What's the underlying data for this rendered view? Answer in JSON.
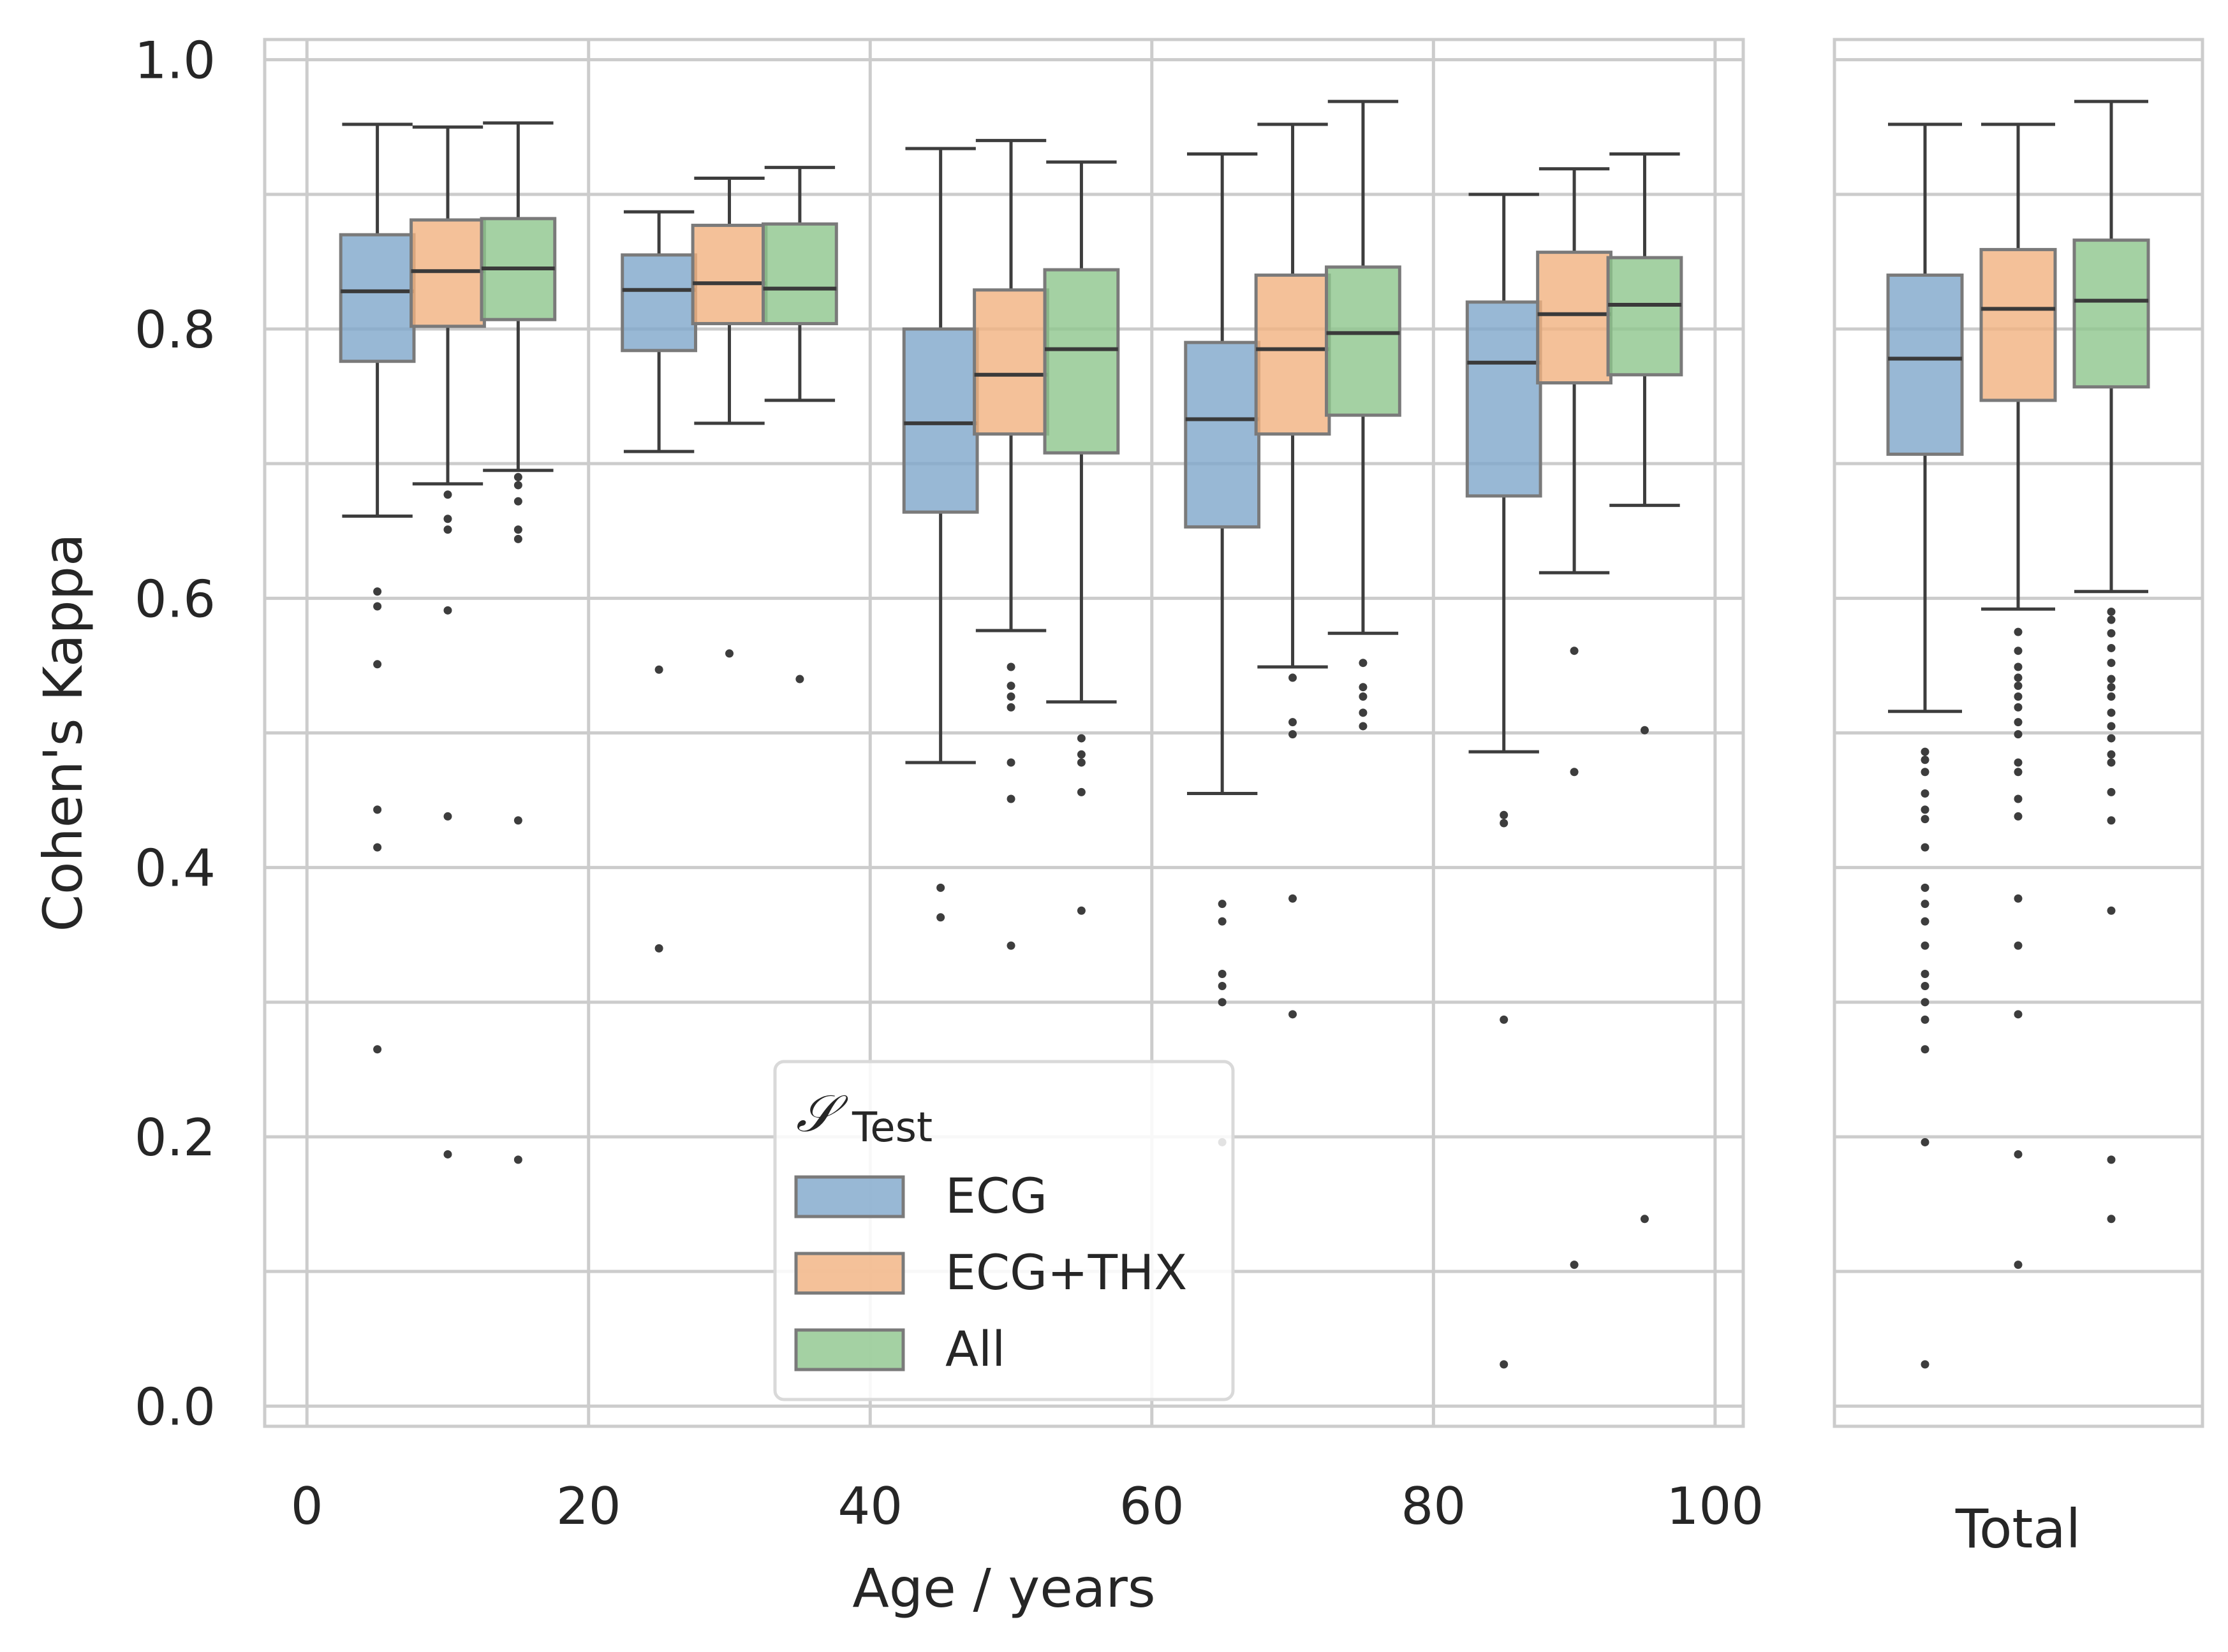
{
  "chart_data": [
    {
      "type": "box",
      "panel": "by-age",
      "xlabel": "Age / years",
      "ylabel": "Cohen's Kappa",
      "xlim": [
        -3,
        102
      ],
      "ylim": [
        -0.015,
        1.015
      ],
      "xticks": [
        "0",
        "20",
        "40",
        "60",
        "80",
        "100"
      ],
      "yticks": [
        "0.0",
        "0.2",
        "0.4",
        "0.6",
        "0.8",
        "1.0"
      ],
      "grid": true,
      "legend": {
        "title_symbol": "𝒮",
        "title_sub": "Test",
        "position": "lower-center",
        "entries": [
          "ECG",
          "ECG+THX",
          "All"
        ]
      },
      "series": [
        {
          "name": "ECG",
          "color": "#7ea6cb",
          "boxes": [
            {
              "x": 5,
              "whislo": 0.661,
              "q1": 0.776,
              "med": 0.828,
              "q3": 0.87,
              "whishi": 0.952,
              "fliers": [
                0.605,
                0.594,
                0.551,
                0.443,
                0.415,
                0.265
              ]
            },
            {
              "x": 25,
              "whislo": 0.709,
              "q1": 0.784,
              "med": 0.829,
              "q3": 0.855,
              "whishi": 0.887,
              "fliers": [
                0.547,
                0.34
              ]
            },
            {
              "x": 45,
              "whislo": 0.478,
              "q1": 0.664,
              "med": 0.73,
              "q3": 0.8,
              "whishi": 0.934,
              "fliers": [
                0.385,
                0.363
              ]
            },
            {
              "x": 65,
              "whislo": 0.455,
              "q1": 0.653,
              "med": 0.733,
              "q3": 0.79,
              "whishi": 0.93,
              "fliers": [
                0.373,
                0.36,
                0.321,
                0.312,
                0.3,
                0.196
              ]
            },
            {
              "x": 85,
              "whislo": 0.486,
              "q1": 0.676,
              "med": 0.775,
              "q3": 0.82,
              "whishi": 0.9,
              "fliers": [
                0.439,
                0.433,
                0.287,
                0.031
              ]
            }
          ]
        },
        {
          "name": "ECG+THX",
          "color": "#f1b17f",
          "boxes": [
            {
              "x": 10,
              "whislo": 0.685,
              "q1": 0.802,
              "med": 0.843,
              "q3": 0.881,
              "whishi": 0.95,
              "fliers": [
                0.677,
                0.659,
                0.651,
                0.591,
                0.438,
                0.187
              ]
            },
            {
              "x": 30,
              "whislo": 0.73,
              "q1": 0.804,
              "med": 0.834,
              "q3": 0.877,
              "whishi": 0.912,
              "fliers": [
                0.559
              ]
            },
            {
              "x": 50,
              "whislo": 0.576,
              "q1": 0.722,
              "med": 0.766,
              "q3": 0.829,
              "whishi": 0.94,
              "fliers": [
                0.549,
                0.535,
                0.527,
                0.519,
                0.478,
                0.451,
                0.342
              ]
            },
            {
              "x": 70,
              "whislo": 0.549,
              "q1": 0.722,
              "med": 0.785,
              "q3": 0.84,
              "whishi": 0.952,
              "fliers": [
                0.541,
                0.508,
                0.499,
                0.377,
                0.291
              ]
            },
            {
              "x": 90,
              "whislo": 0.619,
              "q1": 0.76,
              "med": 0.811,
              "q3": 0.857,
              "whishi": 0.919,
              "fliers": [
                0.561,
                0.471,
                0.105
              ]
            }
          ]
        },
        {
          "name": "All",
          "color": "#8dc68c",
          "boxes": [
            {
              "x": 15,
              "whislo": 0.695,
              "q1": 0.807,
              "med": 0.845,
              "q3": 0.882,
              "whishi": 0.953,
              "fliers": [
                0.69,
                0.684,
                0.672,
                0.651,
                0.644,
                0.435,
                0.183
              ]
            },
            {
              "x": 35,
              "whislo": 0.747,
              "q1": 0.804,
              "med": 0.83,
              "q3": 0.878,
              "whishi": 0.92,
              "fliers": [
                0.54
              ]
            },
            {
              "x": 55,
              "whislo": 0.523,
              "q1": 0.708,
              "med": 0.785,
              "q3": 0.844,
              "whishi": 0.924,
              "fliers": [
                0.496,
                0.484,
                0.478,
                0.456,
                0.368
              ]
            },
            {
              "x": 75,
              "whislo": 0.574,
              "q1": 0.736,
              "med": 0.797,
              "q3": 0.846,
              "whishi": 0.969,
              "fliers": [
                0.552,
                0.534,
                0.527,
                0.515,
                0.505
              ]
            },
            {
              "x": 95,
              "whislo": 0.669,
              "q1": 0.766,
              "med": 0.818,
              "q3": 0.853,
              "whishi": 0.93,
              "fliers": [
                0.502,
                0.139
              ]
            }
          ]
        }
      ]
    },
    {
      "type": "box",
      "panel": "total",
      "xlabel": "Total",
      "ylim": [
        -0.015,
        1.015
      ],
      "grid": true,
      "series": [
        {
          "name": "ECG",
          "color": "#7ea6cb",
          "whislo": 0.516,
          "q1": 0.707,
          "med": 0.778,
          "q3": 0.84,
          "whishi": 0.952,
          "fliers": [
            0.486,
            0.48,
            0.471,
            0.455,
            0.443,
            0.436,
            0.415,
            0.385,
            0.373,
            0.36,
            0.342,
            0.321,
            0.312,
            0.3,
            0.287,
            0.265,
            0.196,
            0.031
          ]
        },
        {
          "name": "ECG+THX",
          "color": "#f1b17f",
          "whislo": 0.592,
          "q1": 0.747,
          "med": 0.815,
          "q3": 0.859,
          "whishi": 0.952,
          "fliers": [
            0.575,
            0.561,
            0.549,
            0.541,
            0.535,
            0.527,
            0.519,
            0.508,
            0.499,
            0.478,
            0.471,
            0.451,
            0.438,
            0.377,
            0.342,
            0.291,
            0.187,
            0.105
          ]
        },
        {
          "name": "All",
          "color": "#8dc68c",
          "whislo": 0.605,
          "q1": 0.757,
          "med": 0.821,
          "q3": 0.866,
          "whishi": 0.969,
          "fliers": [
            0.59,
            0.584,
            0.574,
            0.563,
            0.552,
            0.54,
            0.534,
            0.527,
            0.515,
            0.505,
            0.496,
            0.484,
            0.478,
            0.456,
            0.435,
            0.368,
            0.183,
            0.139
          ]
        }
      ]
    }
  ]
}
